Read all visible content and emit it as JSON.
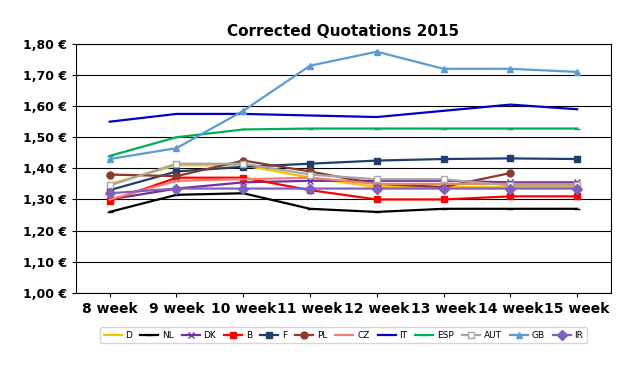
{
  "chart_data": {
    "type": "line",
    "title": "Corrected Quotations 2015",
    "categories": [
      "8 week",
      "9 week",
      "10 week",
      "11 week",
      "12 week",
      "13 week",
      "14 week",
      "15 week"
    ],
    "series": [
      {
        "name": "D",
        "color": "#f5c400",
        "marker": "none",
        "values": [
          1.35,
          1.41,
          1.41,
          1.37,
          1.34,
          1.34,
          1.34,
          1.34
        ]
      },
      {
        "name": "NL",
        "color": "#000000",
        "marker": "dash",
        "values": [
          1.26,
          1.315,
          1.32,
          1.27,
          1.26,
          1.27,
          1.27,
          1.27
        ]
      },
      {
        "name": "DK",
        "color": "#7030a0",
        "marker": "x",
        "values": [
          1.3,
          1.335,
          1.355,
          1.36,
          1.36,
          1.36,
          1.355,
          1.355
        ]
      },
      {
        "name": "B",
        "color": "#ff0000",
        "marker": "square",
        "values": [
          1.295,
          1.37,
          1.37,
          1.33,
          1.3,
          1.3,
          1.31,
          1.31
        ]
      },
      {
        "name": "F",
        "color": "#1f3f6e",
        "marker": "square",
        "values": [
          1.33,
          1.39,
          1.405,
          1.415,
          1.425,
          1.43,
          1.432,
          1.43
        ]
      },
      {
        "name": "PL",
        "color": "#8b3a2b",
        "marker": "circle",
        "values": [
          1.38,
          1.375,
          1.425,
          1.39,
          1.35,
          1.34,
          1.385,
          null
        ]
      },
      {
        "name": "CZ",
        "color": "#f08070",
        "marker": "none",
        "values": [
          1.3,
          1.36,
          1.365,
          1.37,
          1.35,
          1.35,
          1.35,
          1.35
        ]
      },
      {
        "name": "IT",
        "color": "#0000c8",
        "marker": "none",
        "values": [
          1.55,
          1.575,
          1.575,
          1.57,
          1.565,
          1.585,
          1.605,
          1.59
        ]
      },
      {
        "name": "ESP",
        "color": "#00b050",
        "marker": "dash",
        "values": [
          1.44,
          1.5,
          1.525,
          1.528,
          1.528,
          1.528,
          1.528,
          1.528
        ]
      },
      {
        "name": "AUT",
        "color": "#a6a6a6",
        "marker": "square",
        "values": [
          1.345,
          1.415,
          1.415,
          1.38,
          1.365,
          1.365,
          1.345,
          1.345
        ]
      },
      {
        "name": "GB",
        "color": "#5b9bd5",
        "marker": "triangle",
        "values": [
          1.43,
          1.465,
          1.585,
          1.73,
          1.775,
          1.72,
          1.72,
          1.71
        ]
      },
      {
        "name": "IR",
        "color": "#7f5fbf",
        "marker": "diamond",
        "values": [
          1.32,
          1.335,
          1.335,
          1.335,
          1.335,
          1.335,
          1.335,
          1.335
        ]
      }
    ],
    "ylim": [
      1.0,
      1.8
    ],
    "yticks": [
      {
        "value": 1.0,
        "label": "1,00 €"
      },
      {
        "value": 1.1,
        "label": "1,10 €"
      },
      {
        "value": 1.2,
        "label": "1,20 €"
      },
      {
        "value": 1.3,
        "label": "1,30 €"
      },
      {
        "value": 1.4,
        "label": "1,40 €"
      },
      {
        "value": 1.5,
        "label": "1,50 €"
      },
      {
        "value": 1.6,
        "label": "1,60 €"
      },
      {
        "value": 1.7,
        "label": "1,70 €"
      },
      {
        "value": 1.8,
        "label": "1,80 €"
      }
    ],
    "grid": true,
    "legend": "bottom"
  }
}
